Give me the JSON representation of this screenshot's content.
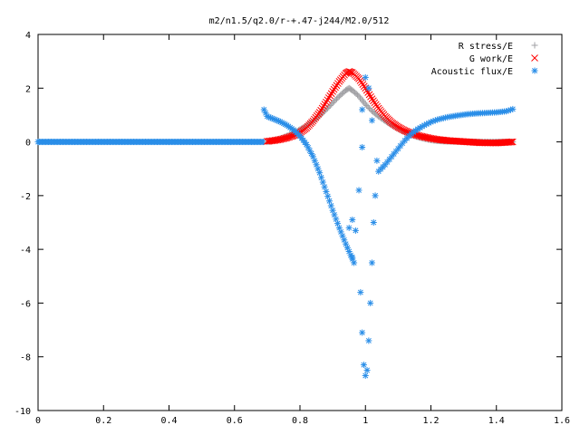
{
  "chart_data": {
    "type": "scatter",
    "title": "m2/n1.5/q2.0/r-+.47-j244/M2.0/512",
    "xlabel": "",
    "ylabel": "",
    "xlim": [
      0,
      1.6
    ],
    "ylim": [
      -10,
      4
    ],
    "x_ticks": [
      0,
      0.2,
      0.4,
      0.6,
      0.8,
      1,
      1.2,
      1.4,
      1.6
    ],
    "x_tick_labels": [
      "0",
      "0.2",
      "0.4",
      "0.6",
      "0.8",
      "1",
      "1.2",
      "1.4",
      "1.6"
    ],
    "y_ticks": [
      4,
      2,
      0,
      -2,
      -4,
      -6,
      -8,
      -10
    ],
    "y_tick_labels": [
      "4",
      "2",
      "0",
      "-2",
      "-4",
      "-6",
      "-8",
      "-10"
    ],
    "grid": false,
    "legend_position": "top-right",
    "series": [
      {
        "name": "R stress/E",
        "marker": "plus",
        "color": "#a0a0a4",
        "points": [
          [
            0.7,
            0.0
          ],
          [
            0.72,
            0.05
          ],
          [
            0.74,
            0.12
          ],
          [
            0.76,
            0.22
          ],
          [
            0.78,
            0.33
          ],
          [
            0.8,
            0.46
          ],
          [
            0.82,
            0.6
          ],
          [
            0.84,
            0.77
          ],
          [
            0.86,
            0.97
          ],
          [
            0.88,
            1.2
          ],
          [
            0.9,
            1.45
          ],
          [
            0.92,
            1.7
          ],
          [
            0.94,
            1.92
          ],
          [
            0.95,
            2.0
          ],
          [
            0.96,
            1.92
          ],
          [
            0.98,
            1.7
          ],
          [
            1.0,
            1.4
          ],
          [
            1.02,
            1.15
          ],
          [
            1.04,
            0.95
          ],
          [
            1.06,
            0.78
          ],
          [
            1.08,
            0.62
          ],
          [
            1.1,
            0.48
          ],
          [
            1.12,
            0.36
          ],
          [
            1.14,
            0.26
          ],
          [
            1.16,
            0.18
          ],
          [
            1.18,
            0.12
          ],
          [
            1.2,
            0.07
          ],
          [
            1.22,
            0.04
          ],
          [
            1.25,
            0.02
          ],
          [
            1.3,
            0.01
          ],
          [
            1.35,
            0.0
          ],
          [
            1.4,
            0.0
          ],
          [
            1.45,
            0.0
          ]
        ]
      },
      {
        "name": "G work/E",
        "marker": "cross",
        "color": "#ff0000",
        "points": [
          [
            0.7,
            0.02
          ],
          [
            0.72,
            0.05
          ],
          [
            0.74,
            0.09
          ],
          [
            0.76,
            0.15
          ],
          [
            0.78,
            0.23
          ],
          [
            0.8,
            0.34
          ],
          [
            0.82,
            0.52
          ],
          [
            0.84,
            0.78
          ],
          [
            0.86,
            1.1
          ],
          [
            0.88,
            1.48
          ],
          [
            0.9,
            1.88
          ],
          [
            0.92,
            2.25
          ],
          [
            0.94,
            2.55
          ],
          [
            0.95,
            2.62
          ],
          [
            0.96,
            2.58
          ],
          [
            0.98,
            2.35
          ],
          [
            1.0,
            2.0
          ],
          [
            1.02,
            1.6
          ],
          [
            1.04,
            1.25
          ],
          [
            1.06,
            0.95
          ],
          [
            1.08,
            0.72
          ],
          [
            1.1,
            0.55
          ],
          [
            1.12,
            0.42
          ],
          [
            1.14,
            0.32
          ],
          [
            1.16,
            0.24
          ],
          [
            1.18,
            0.18
          ],
          [
            1.2,
            0.13
          ],
          [
            1.22,
            0.09
          ],
          [
            1.25,
            0.05
          ],
          [
            1.3,
            0.01
          ],
          [
            1.35,
            -0.03
          ],
          [
            1.4,
            -0.04
          ],
          [
            1.45,
            0.0
          ]
        ]
      },
      {
        "name": "Acoustic flux/E",
        "marker": "star",
        "color": "#2a8ee8",
        "points": [
          [
            0.69,
            1.2
          ],
          [
            0.7,
            0.95
          ],
          [
            0.72,
            0.85
          ],
          [
            0.74,
            0.75
          ],
          [
            0.76,
            0.62
          ],
          [
            0.78,
            0.45
          ],
          [
            0.8,
            0.22
          ],
          [
            0.82,
            -0.1
          ],
          [
            0.84,
            -0.55
          ],
          [
            0.86,
            -1.15
          ],
          [
            0.88,
            -1.85
          ],
          [
            0.9,
            -2.55
          ],
          [
            0.92,
            -3.2
          ],
          [
            0.94,
            -3.8
          ],
          [
            0.96,
            -4.3
          ],
          [
            0.965,
            -4.5
          ],
          [
            0.95,
            -3.2
          ],
          [
            0.96,
            -2.9
          ],
          [
            0.97,
            -3.3
          ],
          [
            0.98,
            -1.8
          ],
          [
            0.985,
            -5.6
          ],
          [
            0.99,
            -7.1
          ],
          [
            0.995,
            -8.3
          ],
          [
            1.0,
            -8.7
          ],
          [
            1.005,
            -8.5
          ],
          [
            1.01,
            -7.4
          ],
          [
            1.015,
            -6.0
          ],
          [
            1.02,
            -4.5
          ],
          [
            1.025,
            -3.0
          ],
          [
            1.03,
            -2.0
          ],
          [
            1.035,
            -0.7
          ],
          [
            0.99,
            1.2
          ],
          [
            1.0,
            2.4
          ],
          [
            1.01,
            2.0
          ],
          [
            1.02,
            0.8
          ],
          [
            0.99,
            -0.2
          ],
          [
            1.04,
            -1.1
          ],
          [
            1.06,
            -0.85
          ],
          [
            1.08,
            -0.55
          ],
          [
            1.1,
            -0.25
          ],
          [
            1.12,
            0.05
          ],
          [
            1.14,
            0.3
          ],
          [
            1.16,
            0.48
          ],
          [
            1.18,
            0.62
          ],
          [
            1.2,
            0.74
          ],
          [
            1.22,
            0.83
          ],
          [
            1.25,
            0.92
          ],
          [
            1.28,
            0.98
          ],
          [
            1.31,
            1.03
          ],
          [
            1.34,
            1.06
          ],
          [
            1.37,
            1.08
          ],
          [
            1.4,
            1.1
          ],
          [
            1.43,
            1.14
          ],
          [
            1.45,
            1.22
          ]
        ]
      }
    ]
  }
}
